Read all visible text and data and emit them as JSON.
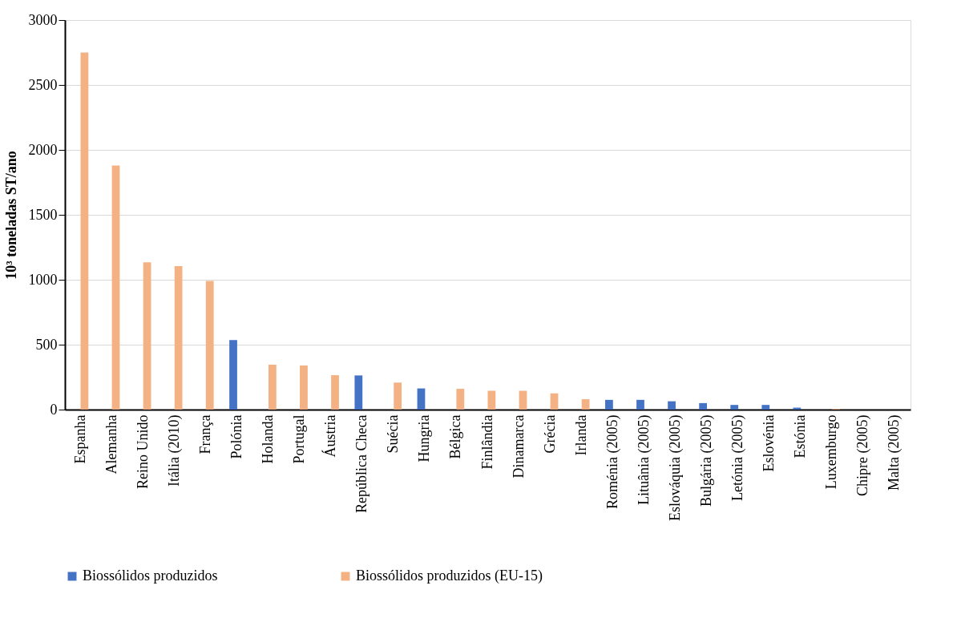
{
  "chart_data": {
    "type": "bar",
    "ylabel": "10³ toneladas ST/ano",
    "categories": [
      "Espanha",
      "Alemanha",
      "Reino Unido",
      "Itália (2010)",
      "França",
      "Polónia",
      "Holanda",
      "Portugal",
      "Áustria",
      "República Checa",
      "Suécia",
      "Hungria",
      "Bélgica",
      "Finlândia",
      "Dinamarca",
      "Grécia",
      "Irlanda",
      "Roménia (2005)",
      "Lituânia (2005)",
      "Eslováquia (2005)",
      "Bulgária (2005)",
      "Letónia (2005)",
      "Eslovénia",
      "Estónia",
      "Luxemburgo",
      "Chipre (2005)",
      "Malta (2005)"
    ],
    "series": [
      {
        "name": "Biossólidos produzidos",
        "color": "#4472c4",
        "values": [
          null,
          null,
          null,
          null,
          null,
          535,
          null,
          null,
          null,
          263,
          null,
          163,
          null,
          null,
          null,
          null,
          null,
          75,
          75,
          64,
          50,
          36,
          36,
          15,
          null,
          null,
          null
        ]
      },
      {
        "name": "Biossólidos produzidos (EU-15)",
        "color": "#f4b183",
        "values": [
          2750,
          1880,
          1135,
          1105,
          990,
          null,
          346,
          340,
          265,
          null,
          208,
          null,
          160,
          145,
          145,
          125,
          80,
          null,
          null,
          null,
          null,
          null,
          null,
          null,
          5,
          null,
          null
        ]
      }
    ],
    "ylim": [
      0,
      3000
    ],
    "yticks": [
      0,
      500,
      1000,
      1500,
      2000,
      2500,
      3000
    ],
    "grid": "y",
    "legend": "bottom"
  }
}
